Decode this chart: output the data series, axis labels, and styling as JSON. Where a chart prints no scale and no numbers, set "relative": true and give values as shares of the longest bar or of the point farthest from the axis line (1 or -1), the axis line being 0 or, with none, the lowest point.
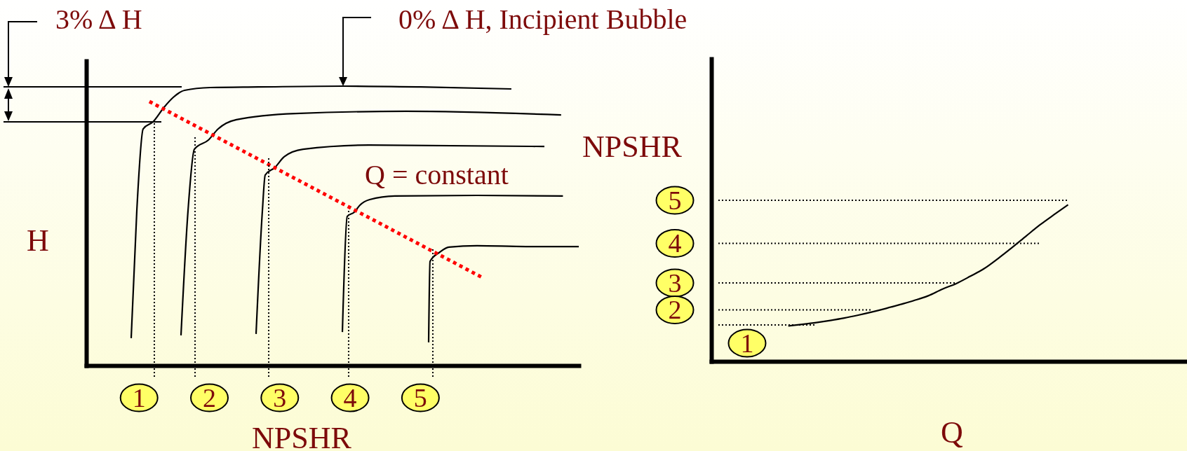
{
  "chart_data": [
    {
      "type": "line",
      "relative": true,
      "xlabel": "NPSHR",
      "ylabel": "H",
      "xlim": [
        0.25,
        7.25
      ],
      "xticks": [
        1,
        2,
        3,
        4,
        5
      ],
      "annotations": [
        "3% Δ H",
        {
          "text": "0% Δ H, Incipient Bubble",
          "x": 3.9,
          "y": 1.0
        },
        "Q = constant"
      ],
      "series": [
        {
          "color": "#000000",
          "x": [
            0.888,
            0.968,
            1.058,
            1.197,
            1.357,
            1.486,
            1.646,
            2.015,
            2.693,
            3.9,
            5.006,
            6.292
          ],
          "values": [
            0.098,
            0.554,
            0.847,
            0.872,
            0.925,
            0.96,
            0.985,
            0.995,
            0.997,
            1.0,
            0.997,
            0.99
          ]
        },
        {
          "color": "#000000",
          "x": [
            1.596,
            1.696,
            1.786,
            1.985,
            2.125,
            2.384,
            3.222,
            4.797,
            6.999
          ],
          "values": [
            0.108,
            0.554,
            0.774,
            0.807,
            0.847,
            0.88,
            0.902,
            0.91,
            0.897
          ]
        },
        {
          "color": "#000000",
          "x": [
            2.663,
            2.753,
            2.793,
            2.932,
            3.062,
            3.331,
            4.268,
            6.761
          ],
          "values": [
            0.113,
            0.554,
            0.682,
            0.709,
            0.747,
            0.774,
            0.789,
            0.784
          ]
        },
        {
          "color": "#000000",
          "x": [
            3.89,
            3.959,
            4.059,
            4.139,
            4.278,
            4.637,
            5.804,
            7.025
          ],
          "values": [
            0.12,
            0.534,
            0.549,
            0.574,
            0.594,
            0.607,
            0.609,
            0.607
          ]
        },
        {
          "color": "#000000",
          "x": [
            5.116,
            5.136,
            5.275,
            5.405,
            5.804,
            6.502,
            7.25
          ],
          "values": [
            0.083,
            0.373,
            0.406,
            0.424,
            0.429,
            0.426,
            0.426
          ]
        },
        {
          "color": "#ff0000",
          "line_style": "dotted",
          "x": [
            1.147,
            5.894
          ],
          "values": [
            0.945,
            0.313
          ]
        },
        {
          "color": "#000000",
          "line_style": "dotted",
          "x": [
            1.217,
            1.217
          ],
          "values": [
            -0.04,
            0.872
          ]
        },
        {
          "color": "#000000",
          "line_style": "dotted",
          "x": [
            1.796,
            1.796
          ],
          "values": [
            -0.04,
            0.817
          ]
        },
        {
          "color": "#000000",
          "line_style": "dotted",
          "x": [
            2.843,
            2.843
          ],
          "values": [
            -0.04,
            0.744
          ]
        },
        {
          "color": "#000000",
          "line_style": "dotted",
          "x": [
            3.979,
            3.979
          ],
          "values": [
            -0.04,
            0.561
          ]
        },
        {
          "color": "#000000",
          "line_style": "dotted",
          "x": [
            5.176,
            5.176
          ],
          "values": [
            -0.04,
            0.419
          ]
        }
      ]
    },
    {
      "type": "line",
      "relative": true,
      "xlabel": "Q",
      "ylabel": "NPSHR",
      "legend": "left",
      "categories": [
        null,
        null,
        null,
        null,
        null,
        null,
        null,
        null,
        null,
        null,
        null,
        null,
        null,
        null,
        null,
        null,
        null,
        null,
        null,
        null,
        null,
        null,
        null,
        null,
        null,
        null,
        null,
        null,
        null,
        null,
        null,
        null,
        null,
        null
      ],
      "series": [
        {
          "color": "#000000",
          "values": [
            null,
            null,
            null,
            null,
            null,
            0.22,
            0.23,
            0.241,
            0.254,
            0.269,
            0.287,
            0.307,
            0.329,
            0.353,
            0.378,
            0.407,
            0.448,
            0.483,
            0.528,
            0.576,
            0.639,
            0.707,
            0.778,
            0.848,
            0.911,
            0.972,
            null,
            null,
            null,
            null,
            null,
            null,
            null,
            null
          ]
        },
        {
          "name": "5",
          "color": "#000000",
          "line_style": "dotted",
          "values": [
            1.0,
            1.0,
            1.0,
            1.0,
            1.0,
            1.0,
            1.0,
            1.0,
            1.0,
            1.0,
            1.0,
            1.0,
            1.0,
            1.0,
            1.0,
            1.0,
            1.0,
            1.0,
            1.0,
            1.0,
            1.0,
            1.0,
            1.0,
            1.0,
            1.0,
            1.0,
            null,
            null,
            null,
            null,
            null,
            null,
            null,
            null
          ]
        },
        {
          "name": "4",
          "color": "#000000",
          "line_style": "dotted",
          "values": [
            0.733,
            0.733,
            0.733,
            0.733,
            0.733,
            0.733,
            0.733,
            0.733,
            0.733,
            0.733,
            0.733,
            0.733,
            0.733,
            0.733,
            0.733,
            0.733,
            0.733,
            0.733,
            0.733,
            0.733,
            0.733,
            0.733,
            0.733,
            0.733,
            null,
            null,
            null,
            null,
            null,
            null,
            null,
            null,
            null,
            null
          ]
        },
        {
          "name": "3",
          "color": "#000000",
          "line_style": "dotted",
          "values": [
            0.487,
            0.487,
            0.487,
            0.487,
            0.487,
            0.487,
            0.487,
            0.487,
            0.487,
            0.487,
            0.487,
            0.487,
            0.487,
            0.487,
            0.487,
            0.487,
            0.487,
            0.487,
            null,
            null,
            null,
            null,
            null,
            null,
            null,
            null,
            null,
            null,
            null,
            null,
            null,
            null,
            null,
            null
          ]
        },
        {
          "name": "2",
          "color": "#000000",
          "line_style": "dotted",
          "values": [
            0.32,
            0.32,
            0.32,
            0.32,
            0.32,
            0.32,
            0.32,
            0.32,
            0.32,
            0.32,
            0.32,
            0.32,
            null,
            null,
            null,
            null,
            null,
            null,
            null,
            null,
            null,
            null,
            null,
            null,
            null,
            null,
            null,
            null,
            null,
            null,
            null,
            null,
            null,
            null
          ]
        },
        {
          "name": "1",
          "color": "#000000",
          "line_style": "dotted",
          "values": [
            0.226,
            0.226,
            0.226,
            0.226,
            0.226,
            0.226,
            0.226,
            0.226,
            null,
            null,
            null,
            null,
            null,
            null,
            null,
            null,
            null,
            null,
            null,
            null,
            null,
            null,
            null,
            null,
            null,
            null,
            null,
            null,
            null,
            null,
            null,
            null,
            null,
            null
          ]
        }
      ]
    }
  ]
}
